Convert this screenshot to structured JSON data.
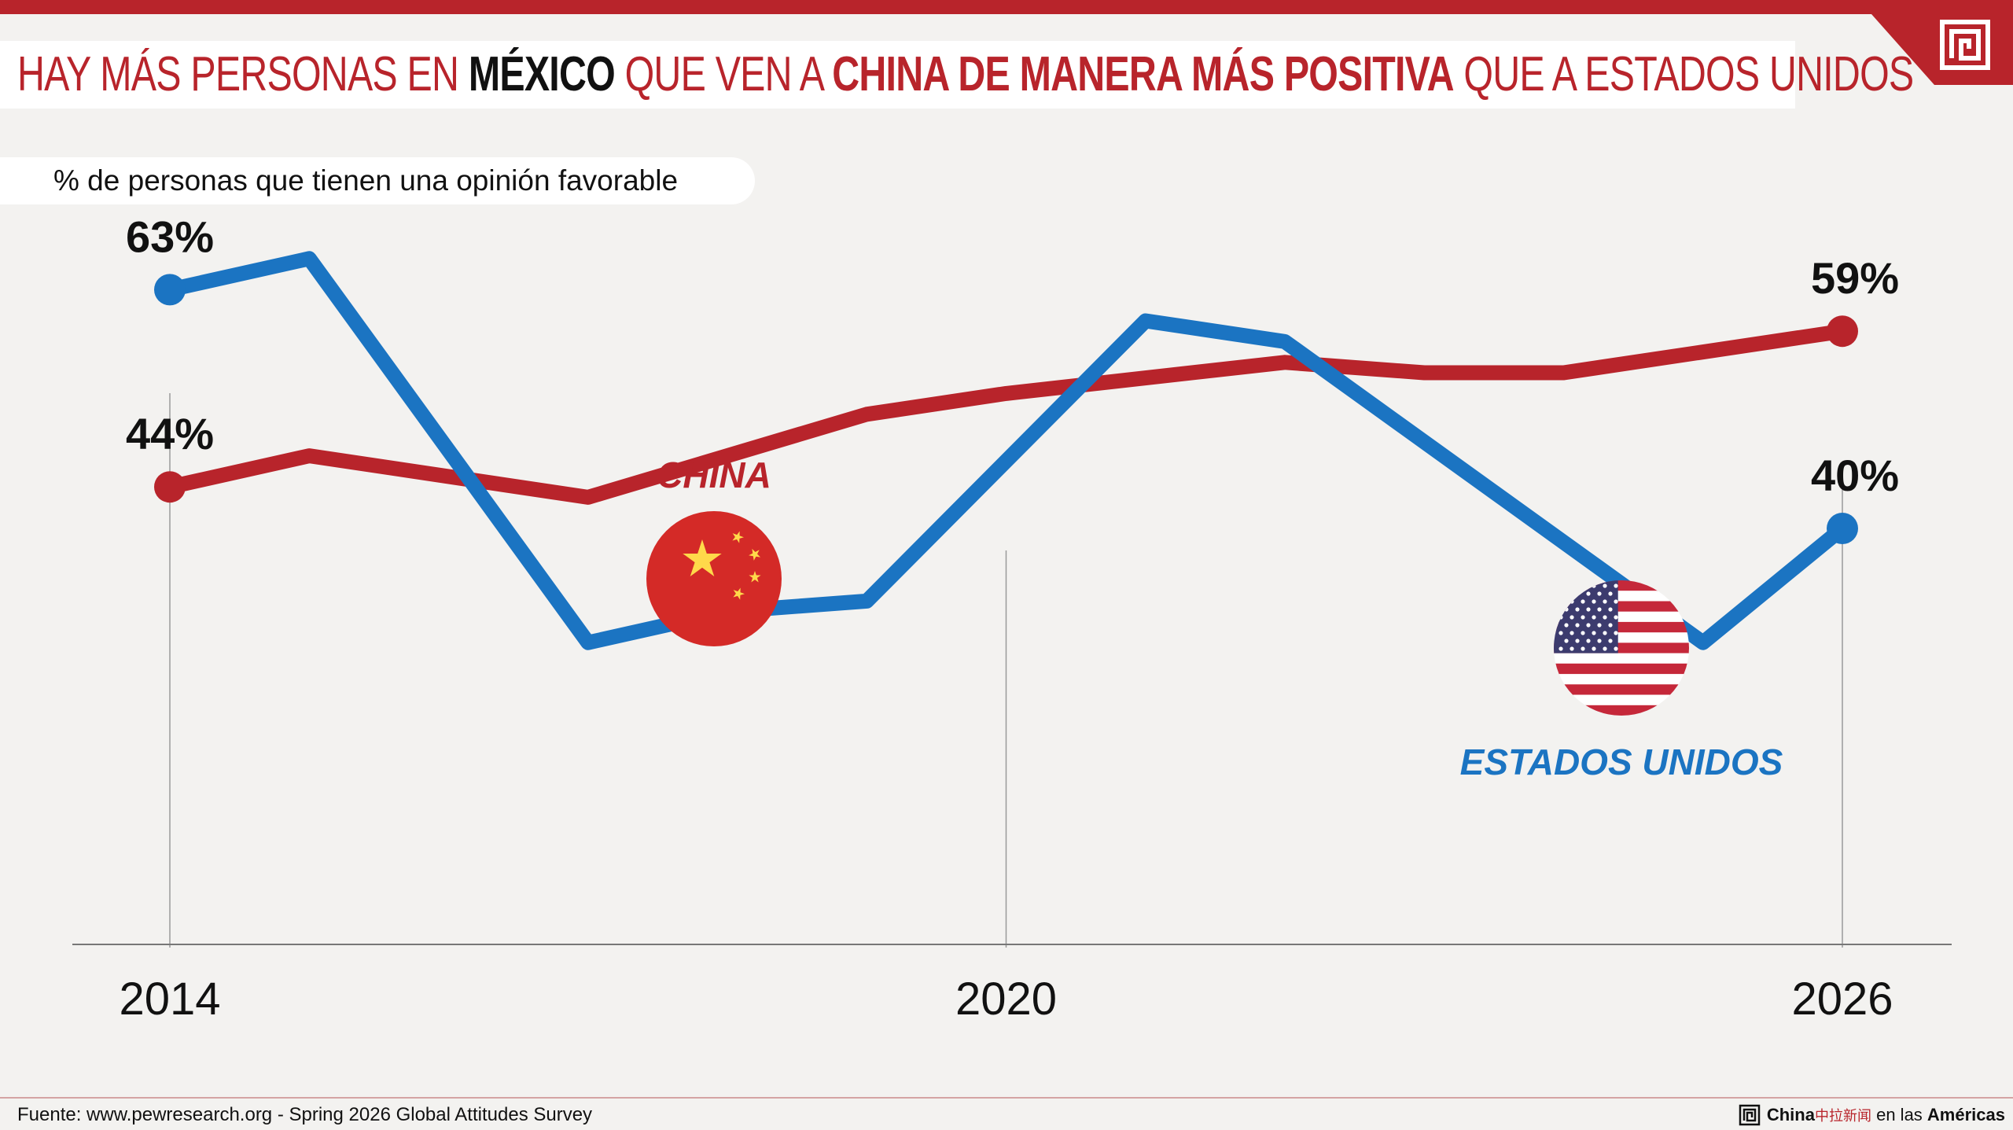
{
  "title": {
    "part1": "HAY MÁS PERSONAS EN ",
    "part2": "MÉXICO",
    "part3": " QUE VEN A ",
    "part4": "CHINA DE MANERA MÁS POSITIVA",
    "part5": " QUE A ESTADOS UNIDOS"
  },
  "subtitle": "% de personas que tienen una opinión favorable",
  "chart_data": {
    "type": "line",
    "x": [
      2014,
      2015,
      2017,
      2018,
      2019,
      2022,
      2023,
      2024,
      2026
    ],
    "xticks": [
      "2014",
      "2020",
      "2026"
    ],
    "series": [
      {
        "name": "CHINA",
        "color": "#b8242b",
        "flag_icon": "china-flag-icon",
        "x": [
          2014,
          2015,
          2017,
          2019,
          2020,
          2022,
          2023,
          2024,
          2026
        ],
        "values": [
          44,
          47,
          43,
          51,
          53,
          56,
          55,
          55,
          59
        ],
        "start_label": "44%",
        "end_label": "59%"
      },
      {
        "name": "ESTADOS UNIDOS",
        "color": "#1b74c2",
        "flag_icon": "usa-flag-icon",
        "x": [
          2014,
          2015,
          2017,
          2018,
          2019,
          2021,
          2022,
          2025,
          2026
        ],
        "values": [
          63,
          66,
          29,
          32,
          33,
          60,
          58,
          29,
          40
        ],
        "start_label": "63%",
        "end_label": "40%"
      }
    ],
    "xlabel": "",
    "ylabel": "",
    "grid": false
  },
  "footer": {
    "source": "Fuente: www.pewresearch.org - Spring 2026 Global Attitudes Survey",
    "brand_china": "China",
    "brand_cn": "中拉新闻",
    "brand_mid": " en las ",
    "brand_americas": "Américas"
  },
  "colors": {
    "accent": "#b8242b",
    "usa_line": "#1b74c2",
    "background": "#f3f2f0"
  }
}
